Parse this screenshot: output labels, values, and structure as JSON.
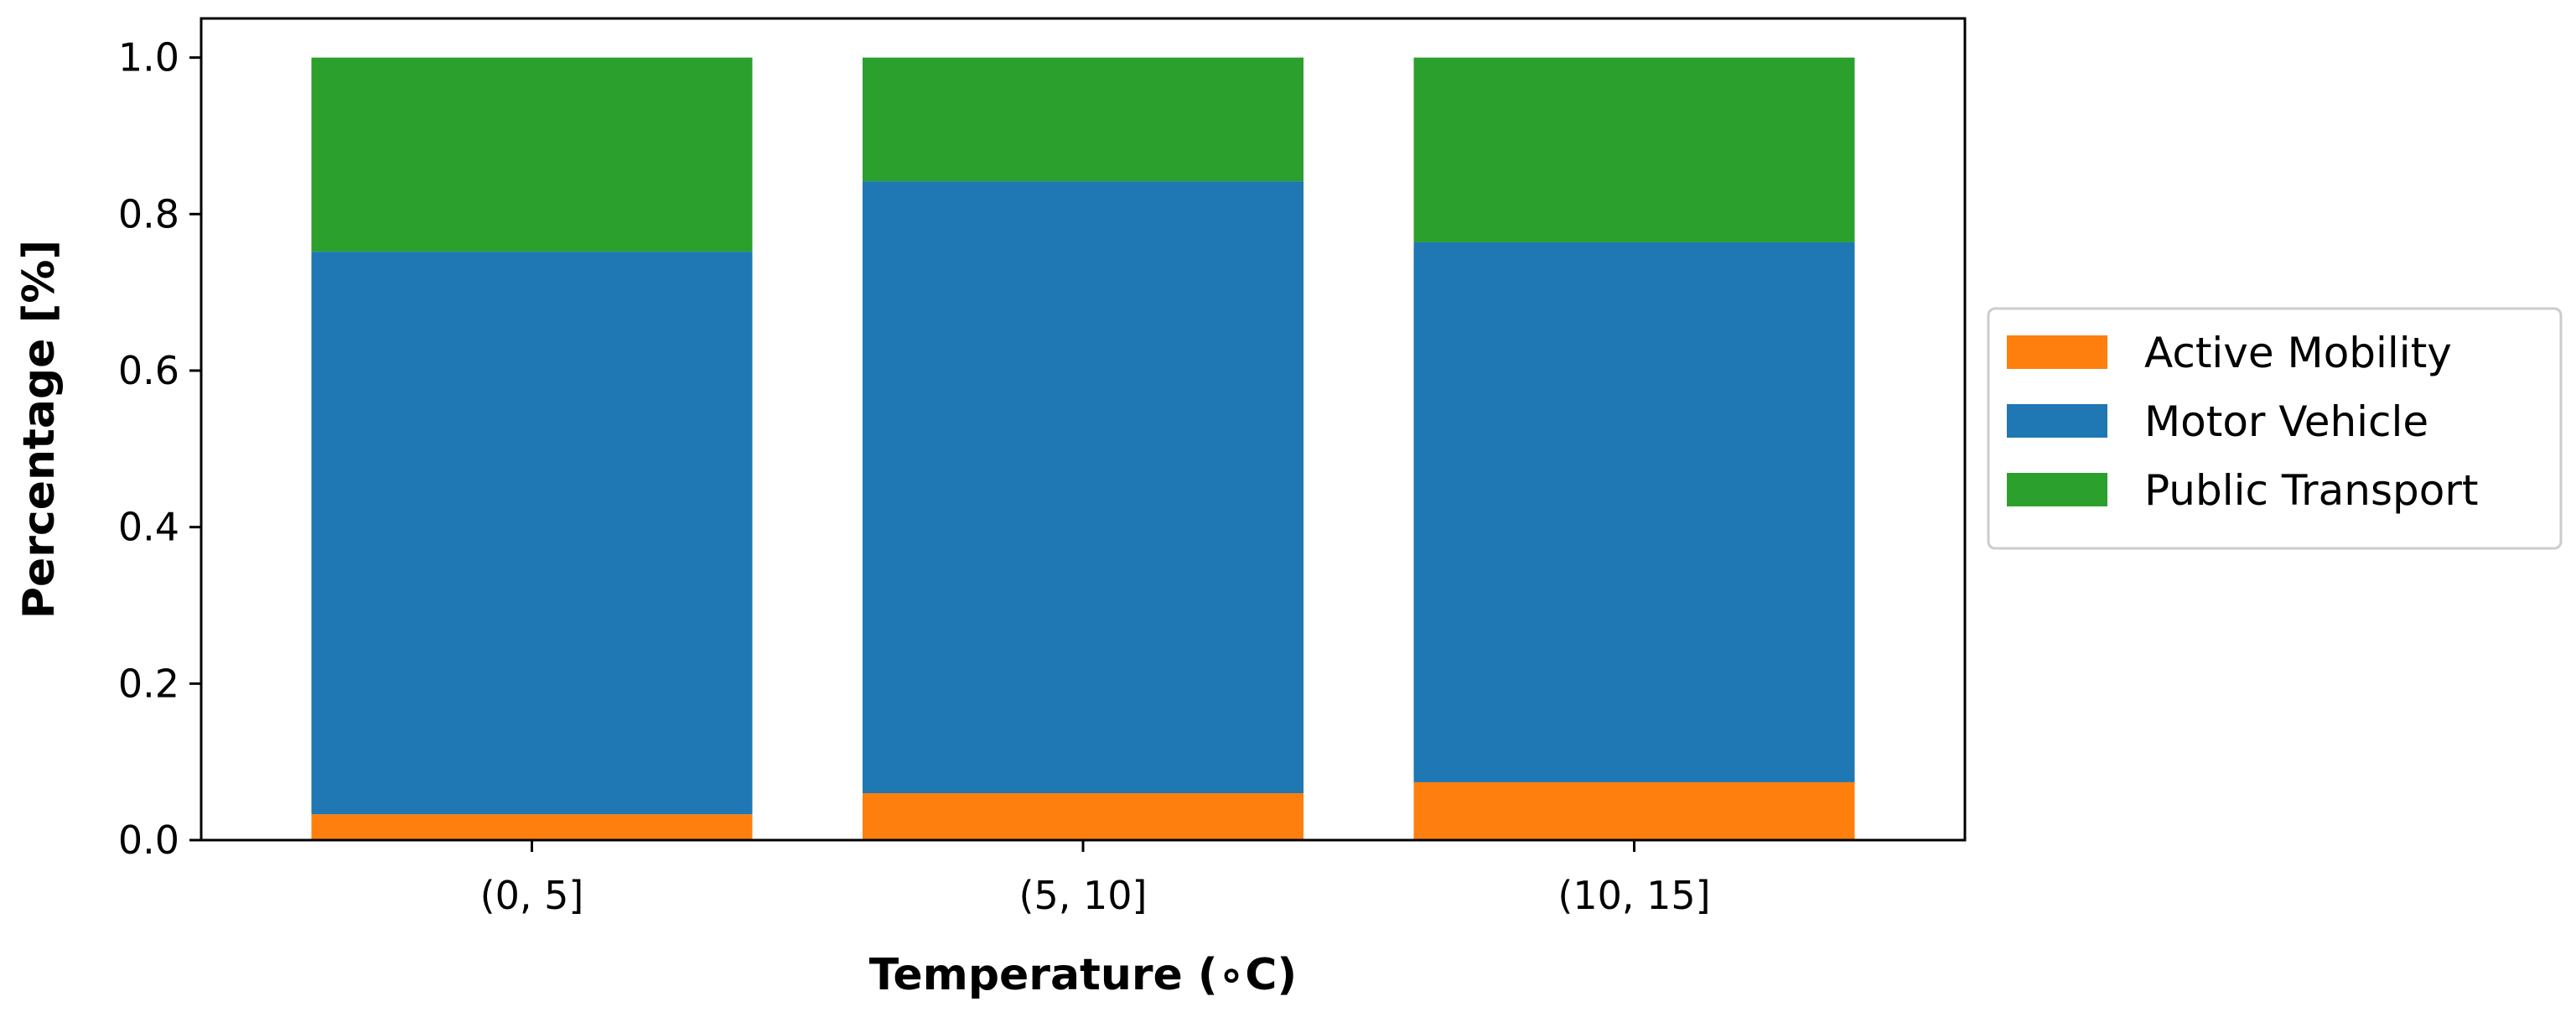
{
  "chart_data": {
    "type": "bar",
    "stacked": true,
    "categories": [
      "(0, 5]",
      "(5, 10]",
      "(10, 15]"
    ],
    "series": [
      {
        "name": "Active Mobility",
        "color": "#ff7f0e",
        "values": [
          0.033,
          0.06,
          0.074
        ]
      },
      {
        "name": "Motor Vehicle",
        "color": "#1f77b4",
        "values": [
          0.719,
          0.782,
          0.69
        ]
      },
      {
        "name": "Public Transport",
        "color": "#2ca02c",
        "values": [
          0.248,
          0.158,
          0.236
        ]
      }
    ],
    "xlabel": "Temperature ($^\\circ$C)",
    "xlabel_display": "Temperature (∘C)",
    "ylabel": "Percentage [%]",
    "ylim": [
      0,
      1.05
    ],
    "yticks": [
      "0.0",
      "0.2",
      "0.4",
      "0.6",
      "0.8",
      "1.0"
    ],
    "ytick_values": [
      0,
      0.2,
      0.4,
      0.6,
      0.8,
      1.0
    ],
    "grid": false,
    "legend_position": "right"
  }
}
